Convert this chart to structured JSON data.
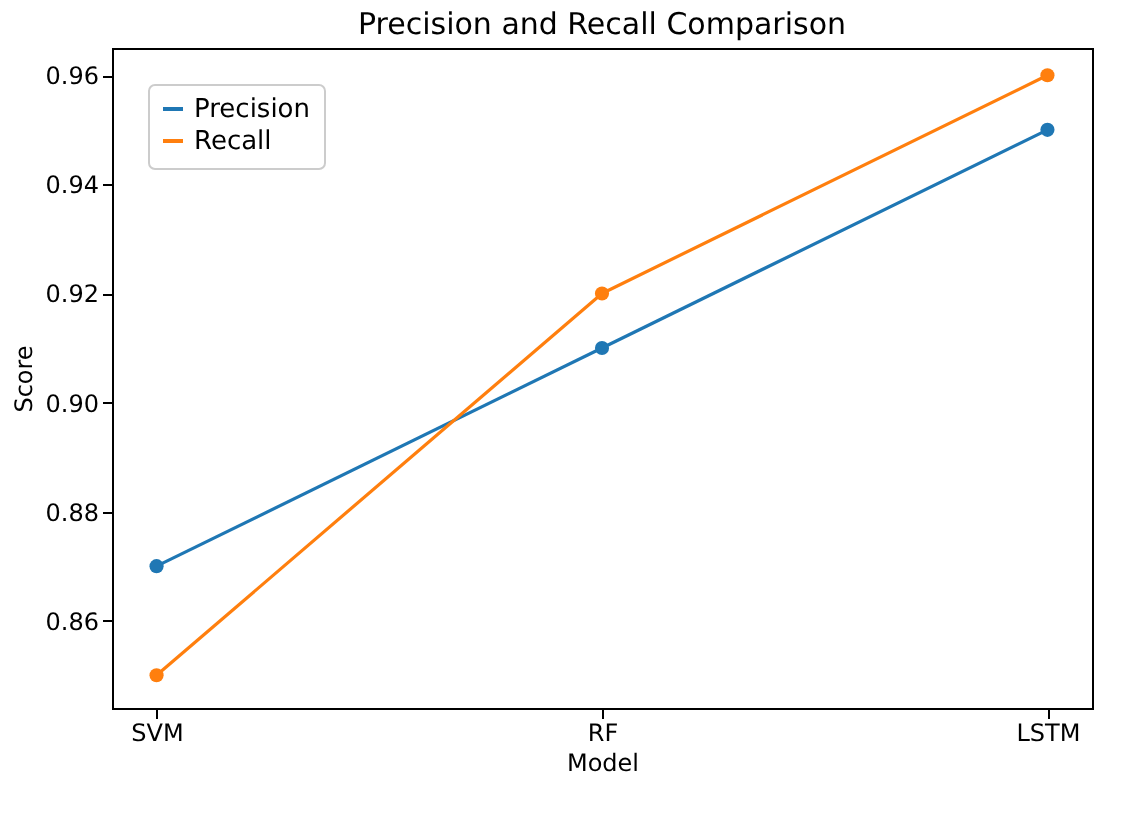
{
  "chart_data": {
    "type": "line",
    "title": "Precision and Recall Comparison",
    "xlabel": "Model",
    "ylabel": "Score",
    "categories": [
      "SVM",
      "RF",
      "LSTM"
    ],
    "series": [
      {
        "name": "Precision",
        "color": "#1f77b4",
        "values": [
          0.87,
          0.91,
          0.95
        ]
      },
      {
        "name": "Recall",
        "color": "#ff7f0e",
        "values": [
          0.85,
          0.92,
          0.96
        ]
      }
    ],
    "ylim": [
      0.844,
      0.965
    ],
    "yticks": [
      0.86,
      0.88,
      {
        "value": 0.9,
        "label": "0.90"
      },
      0.92,
      0.94,
      0.96
    ],
    "grid": false,
    "legend": "top left",
    "marker": "circle",
    "line_style": "solid"
  }
}
